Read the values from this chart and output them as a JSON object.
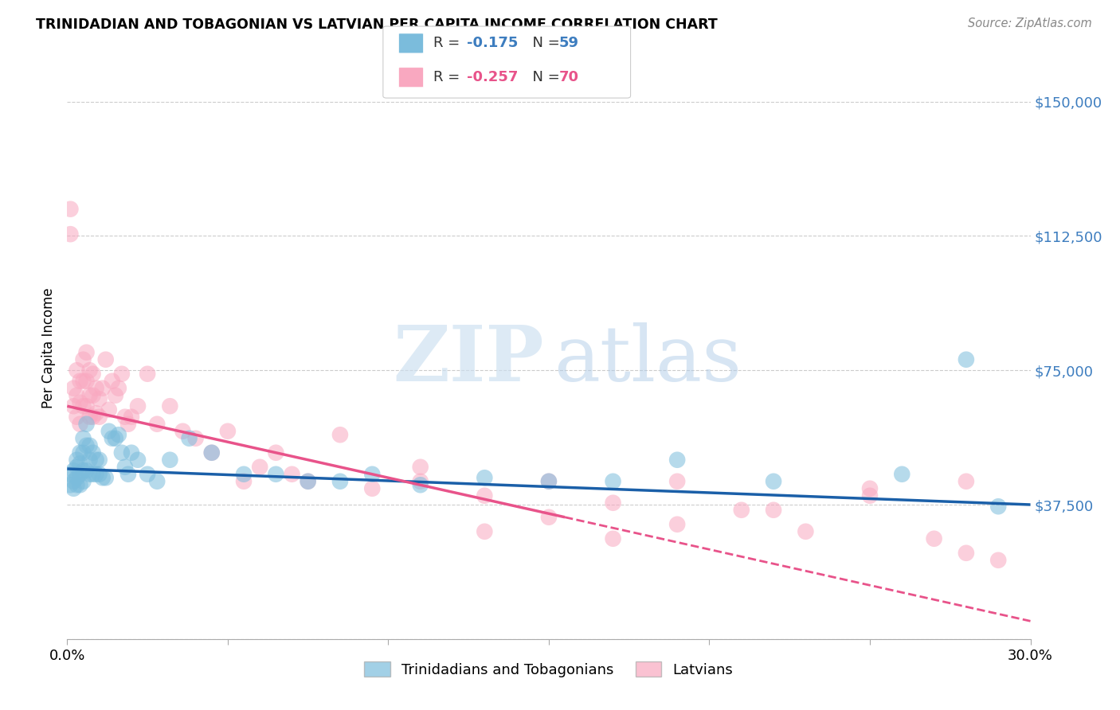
{
  "title": "TRINIDADIAN AND TOBAGONIAN VS LATVIAN PER CAPITA INCOME CORRELATION CHART",
  "source": "Source: ZipAtlas.com",
  "ylabel": "Per Capita Income",
  "xlim": [
    0.0,
    0.3
  ],
  "ylim": [
    0,
    162500
  ],
  "yticks": [
    0,
    37500,
    75000,
    112500,
    150000
  ],
  "ytick_labels": [
    "",
    "$37,500",
    "$75,000",
    "$112,500",
    "$150,000"
  ],
  "blue_color": "#7bbcdc",
  "pink_color": "#f9a8c0",
  "blue_line_color": "#1a5fa8",
  "pink_line_color": "#e8538a",
  "blue_x": [
    0.001,
    0.001,
    0.002,
    0.002,
    0.002,
    0.003,
    0.003,
    0.003,
    0.003,
    0.004,
    0.004,
    0.004,
    0.004,
    0.005,
    0.005,
    0.005,
    0.005,
    0.006,
    0.006,
    0.006,
    0.007,
    0.007,
    0.007,
    0.008,
    0.008,
    0.009,
    0.009,
    0.01,
    0.01,
    0.011,
    0.012,
    0.013,
    0.014,
    0.015,
    0.016,
    0.017,
    0.018,
    0.019,
    0.02,
    0.022,
    0.025,
    0.028,
    0.032,
    0.038,
    0.045,
    0.055,
    0.065,
    0.075,
    0.085,
    0.095,
    0.11,
    0.13,
    0.15,
    0.17,
    0.19,
    0.22,
    0.26,
    0.28,
    0.29
  ],
  "blue_y": [
    46000,
    43000,
    47000,
    44000,
    42000,
    50000,
    48000,
    45000,
    43000,
    52000,
    49000,
    46000,
    43000,
    56000,
    52000,
    47000,
    44000,
    60000,
    54000,
    47000,
    54000,
    50000,
    46000,
    52000,
    46000,
    50000,
    46000,
    50000,
    46000,
    45000,
    45000,
    58000,
    56000,
    56000,
    57000,
    52000,
    48000,
    46000,
    52000,
    50000,
    46000,
    44000,
    50000,
    56000,
    52000,
    46000,
    46000,
    44000,
    44000,
    46000,
    43000,
    45000,
    44000,
    44000,
    50000,
    44000,
    46000,
    78000,
    37000
  ],
  "pink_x": [
    0.001,
    0.001,
    0.002,
    0.002,
    0.003,
    0.003,
    0.003,
    0.004,
    0.004,
    0.004,
    0.005,
    0.005,
    0.005,
    0.006,
    0.006,
    0.006,
    0.007,
    0.007,
    0.007,
    0.008,
    0.008,
    0.008,
    0.009,
    0.009,
    0.01,
    0.01,
    0.011,
    0.012,
    0.013,
    0.014,
    0.015,
    0.016,
    0.017,
    0.018,
    0.019,
    0.02,
    0.022,
    0.025,
    0.028,
    0.032,
    0.036,
    0.04,
    0.045,
    0.05,
    0.055,
    0.06,
    0.065,
    0.07,
    0.075,
    0.085,
    0.095,
    0.11,
    0.13,
    0.15,
    0.17,
    0.19,
    0.21,
    0.23,
    0.25,
    0.27,
    0.28,
    0.29,
    0.15,
    0.17,
    0.19,
    0.22,
    0.25,
    0.11,
    0.13,
    0.28
  ],
  "pink_y": [
    113000,
    120000,
    70000,
    65000,
    75000,
    68000,
    62000,
    72000,
    66000,
    60000,
    78000,
    72000,
    65000,
    80000,
    72000,
    65000,
    75000,
    68000,
    62000,
    74000,
    68000,
    62000,
    70000,
    63000,
    67000,
    62000,
    70000,
    78000,
    64000,
    72000,
    68000,
    70000,
    74000,
    62000,
    60000,
    62000,
    65000,
    74000,
    60000,
    65000,
    58000,
    56000,
    52000,
    58000,
    44000,
    48000,
    52000,
    46000,
    44000,
    57000,
    42000,
    44000,
    40000,
    44000,
    38000,
    32000,
    36000,
    30000,
    40000,
    28000,
    24000,
    22000,
    34000,
    28000,
    44000,
    36000,
    42000,
    48000,
    30000,
    44000
  ],
  "blue_intercept": 47500,
  "blue_slope": -33333,
  "pink_intercept": 65000,
  "pink_slope": -200000
}
